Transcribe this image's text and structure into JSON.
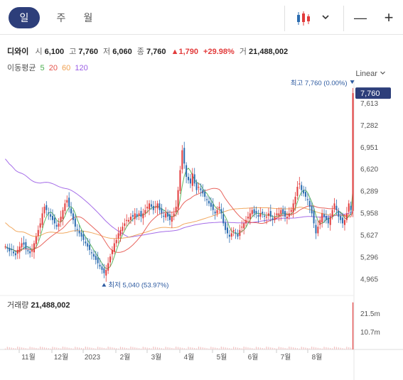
{
  "tabs": [
    {
      "label": "일",
      "active": true
    },
    {
      "label": "주",
      "active": false
    },
    {
      "label": "월",
      "active": false
    }
  ],
  "controls": {
    "chart_type_icon": "candlestick-icon",
    "dropdown_icon": "chevron-down-icon",
    "zoom_out_label": "—",
    "zoom_in_label": "+"
  },
  "ticker": {
    "name": "디와이",
    "open_label": "시",
    "open": "6,100",
    "high_label": "고",
    "high": "7,760",
    "low_label": "저",
    "low": "6,060",
    "close_label": "종",
    "close": "7,760",
    "change": "▲1,790",
    "change_pct": "+29.98%",
    "volume_label": "거",
    "volume": "21,488,002"
  },
  "moving_average": {
    "label": "이동평균",
    "periods": [
      {
        "value": "5",
        "color": "#4caf50"
      },
      {
        "value": "20",
        "color": "#e5534b"
      },
      {
        "value": "60",
        "color": "#f0a050"
      },
      {
        "value": "120",
        "color": "#9b5de5"
      }
    ]
  },
  "scale_mode": "Linear",
  "volume_panel": {
    "label": "거래량",
    "value": "21,488,002"
  },
  "chart_data": {
    "type": "candlestick",
    "ylim": [
      4800,
      7900
    ],
    "y_ticks": [
      "7,613",
      "7,282",
      "6,951",
      "6,620",
      "6,289",
      "5,958",
      "5,627",
      "5,296",
      "4,965"
    ],
    "current_price_tag": "7,760",
    "high_annotation": "최고 7,760 (0.00%)",
    "low_annotation": "최저 5,040 (53.97%)",
    "x_ticks": [
      "11월",
      "12월",
      "2023",
      "2월",
      "3월",
      "4월",
      "5월",
      "6월",
      "7월",
      "8월"
    ],
    "volume_ticks": [
      "21.5m",
      "10.7m"
    ],
    "volume_ylim": [
      0,
      24000000
    ],
    "up_color": "#e23b3b",
    "down_color": "#2b6cb0",
    "close_series": [
      5450,
      5420,
      5380,
      5400,
      5350,
      5320,
      5400,
      5450,
      5500,
      5480,
      5420,
      5380,
      5350,
      5400,
      5500,
      5600,
      5700,
      5800,
      5950,
      6050,
      6000,
      5950,
      5900,
      5850,
      5800,
      5750,
      5800,
      5900,
      6000,
      6100,
      6150,
      6050,
      5950,
      5850,
      5750,
      5700,
      5650,
      5600,
      5550,
      5500,
      5450,
      5400,
      5350,
      5300,
      5250,
      5200,
      5150,
      5100,
      5050,
      5100,
      5200,
      5300,
      5400,
      5500,
      5550,
      5650,
      5700,
      5750,
      5800,
      5850,
      5850,
      5900,
      5900,
      5950,
      5900,
      5950,
      5900,
      5950,
      6000,
      6050,
      6100,
      6050,
      6000,
      6050,
      6100,
      6000,
      5950,
      5900,
      5950,
      5900,
      5850,
      5900,
      5950,
      6050,
      6300,
      6600,
      6900,
      6700,
      6500,
      6450,
      6400,
      6550,
      6400,
      6300,
      6350,
      6300,
      6250,
      6200,
      6150,
      6100,
      6050,
      6000,
      5950,
      6000,
      6050,
      5950,
      5800,
      5700,
      5650,
      5600,
      5650,
      5700,
      5650,
      5600,
      5700,
      5750,
      5800,
      5850,
      5900,
      5950,
      6000,
      5950,
      5950,
      5900,
      5950,
      5950,
      5900,
      5900,
      5950,
      5900,
      5850,
      5900,
      5950,
      5950,
      6000,
      5950,
      5900,
      5900,
      5950,
      6000,
      6100,
      6200,
      6350,
      6400,
      6300,
      6250,
      6200,
      6150,
      6050,
      5950,
      5800,
      5650,
      5750,
      5850,
      5950,
      5900,
      5850,
      5800,
      5900,
      6000,
      6100,
      6000,
      5900,
      5850,
      5800,
      5850,
      5950,
      6100,
      6000,
      7760
    ]
  }
}
